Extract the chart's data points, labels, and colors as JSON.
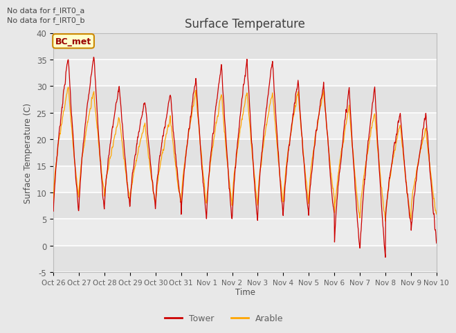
{
  "title": "Surface Temperature",
  "ylabel": "Surface Temperature (C)",
  "xlabel": "Time",
  "ylim": [
    -5,
    40
  ],
  "xtick_labels": [
    "Oct 26",
    "Oct 27",
    "Oct 28",
    "Oct 29",
    "Oct 30",
    "Oct 31",
    "Nov 1",
    "Nov 2",
    "Nov 3",
    "Nov 4",
    "Nov 5",
    "Nov 6",
    "Nov 7",
    "Nov 8",
    "Nov 9",
    "Nov 10"
  ],
  "top_text": [
    "No data for f_IRT0_a",
    "No data for f_IRT0_b"
  ],
  "box_label": "BC_met",
  "box_bg": "#ffffcc",
  "box_border": "#cc8800",
  "box_text_color": "#990000",
  "bg_color": "#e8e8e8",
  "grid_bg_light": "#ebebeb",
  "grid_bg_dark": "#dedede",
  "tower_color": "#cc0000",
  "arable_color": "#ffa500",
  "title_color": "#404040",
  "axis_label_color": "#505050",
  "tick_label_color": "#606060",
  "tower_daily_peaks": [
    35.5,
    36,
    30,
    27.5,
    28.5,
    31.5,
    34,
    35,
    35,
    31,
    30.5,
    29.5,
    30,
    25,
    25
  ],
  "tower_daily_mins": [
    6,
    6.5,
    7.5,
    7.5,
    8,
    5,
    5,
    4.5,
    5.5,
    5.5,
    6,
    -0.5,
    -2,
    4,
    1
  ],
  "arable_daily_peaks": [
    30,
    29,
    24,
    23,
    24,
    29,
    28.5,
    29,
    29,
    29,
    29,
    26,
    25,
    23,
    22
  ],
  "arable_daily_mins": [
    9,
    10,
    9,
    8,
    8,
    8,
    7.5,
    8,
    8,
    8,
    9,
    5,
    5,
    5,
    6
  ]
}
